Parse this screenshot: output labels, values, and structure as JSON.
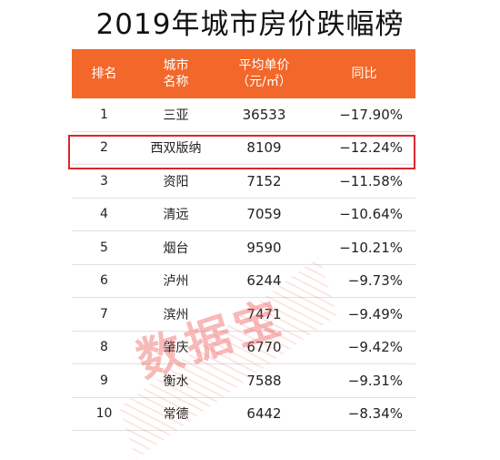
{
  "title": "2019年城市房价跌幅榜",
  "headers": {
    "rank": "排名",
    "city_line1": "城市",
    "city_line2": "名称",
    "price_line1": "平均单价",
    "price_line2": "（元/㎡）",
    "yoy": "同比"
  },
  "rows": [
    {
      "rank": "1",
      "city": "三亚",
      "price": "36533",
      "yoy": "−17.90%"
    },
    {
      "rank": "2",
      "city": "西双版纳",
      "price": "8109",
      "yoy": "−12.24%"
    },
    {
      "rank": "3",
      "city": "资阳",
      "price": "7152",
      "yoy": "−11.58%"
    },
    {
      "rank": "4",
      "city": "清远",
      "price": "7059",
      "yoy": "−10.64%"
    },
    {
      "rank": "5",
      "city": "烟台",
      "price": "9590",
      "yoy": "−10.21%"
    },
    {
      "rank": "6",
      "city": "泸州",
      "price": "6244",
      "yoy": "−9.73%"
    },
    {
      "rank": "7",
      "city": "滨州",
      "price": "7471",
      "yoy": "−9.49%"
    },
    {
      "rank": "8",
      "city": "肇庆",
      "price": "6770",
      "yoy": "−9.42%"
    },
    {
      "rank": "9",
      "city": "衡水",
      "price": "7588",
      "yoy": "−9.31%"
    },
    {
      "rank": "10",
      "city": "常德",
      "price": "6442",
      "yoy": "−8.34%"
    }
  ],
  "highlight_row": "2",
  "watermark": "数据宝",
  "colors": {
    "header_bg": "#f2672a",
    "highlight_border": "#d9272e",
    "watermark": "#f06464"
  }
}
